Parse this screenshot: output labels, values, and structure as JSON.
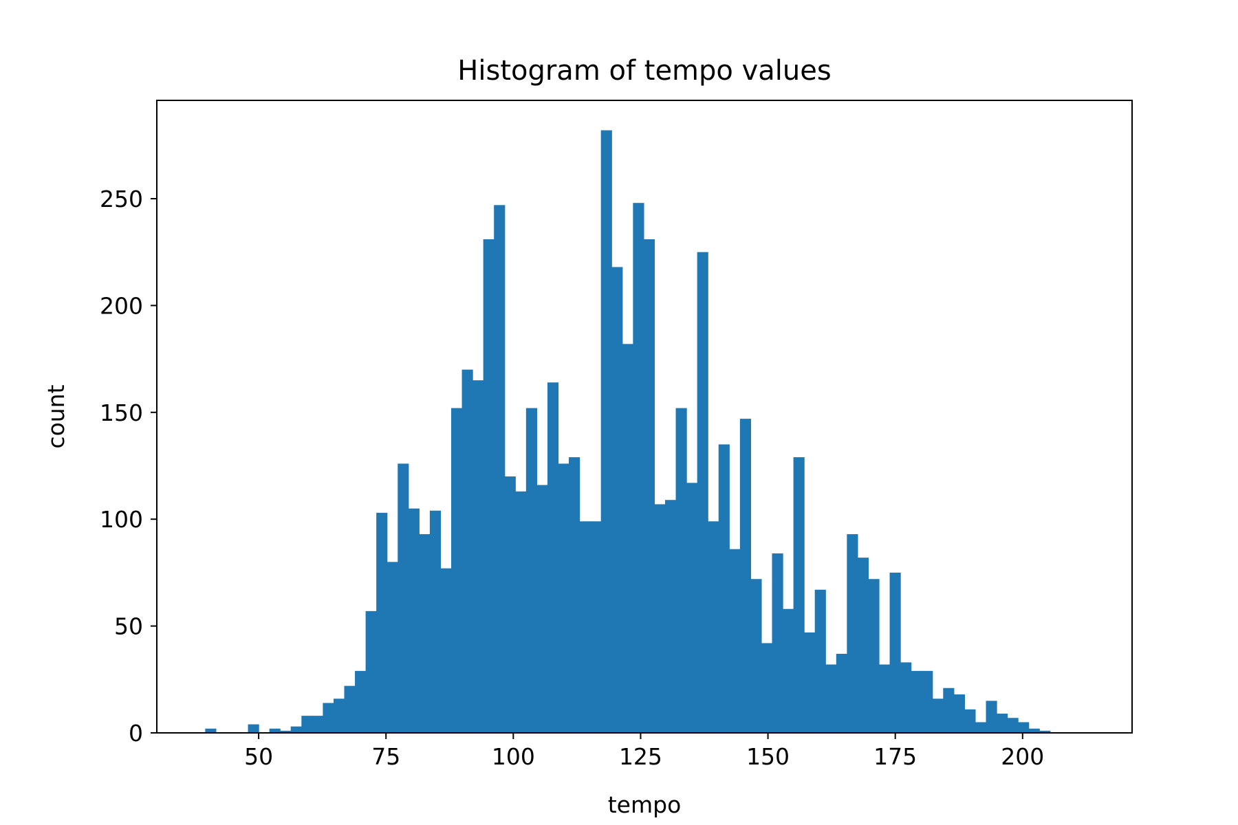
{
  "chart_data": {
    "type": "bar",
    "title": "Histogram of tempo values",
    "xlabel": "tempo",
    "ylabel": "count",
    "xlim": [
      30,
      221.5
    ],
    "ylim": [
      0,
      296
    ],
    "grid": false,
    "bin_start": 39.5,
    "bin_width": 2.1,
    "values": [
      2,
      0,
      0,
      0,
      4,
      0,
      2,
      1,
      3,
      8,
      8,
      14,
      16,
      22,
      29,
      57,
      103,
      80,
      126,
      105,
      93,
      104,
      77,
      152,
      170,
      165,
      231,
      247,
      120,
      113,
      152,
      116,
      164,
      126,
      129,
      99,
      99,
      282,
      218,
      182,
      248,
      231,
      107,
      109,
      152,
      117,
      225,
      99,
      135,
      86,
      147,
      72,
      42,
      84,
      58,
      129,
      47,
      67,
      32,
      37,
      93,
      82,
      72,
      32,
      75,
      33,
      29,
      29,
      16,
      21,
      18,
      11,
      5,
      15,
      9,
      7,
      5,
      2,
      1
    ],
    "x_ticks": [
      50,
      75,
      100,
      125,
      150,
      175,
      200
    ],
    "x_tick_labels": [
      "50",
      "75",
      "100",
      "125",
      "150",
      "175",
      "200"
    ],
    "y_ticks": [
      0,
      50,
      100,
      150,
      200,
      250
    ],
    "y_tick_labels": [
      "0",
      "50",
      "100",
      "150",
      "200",
      "250"
    ],
    "bar_color": "#1f77b4",
    "axis_color": "#000000"
  }
}
